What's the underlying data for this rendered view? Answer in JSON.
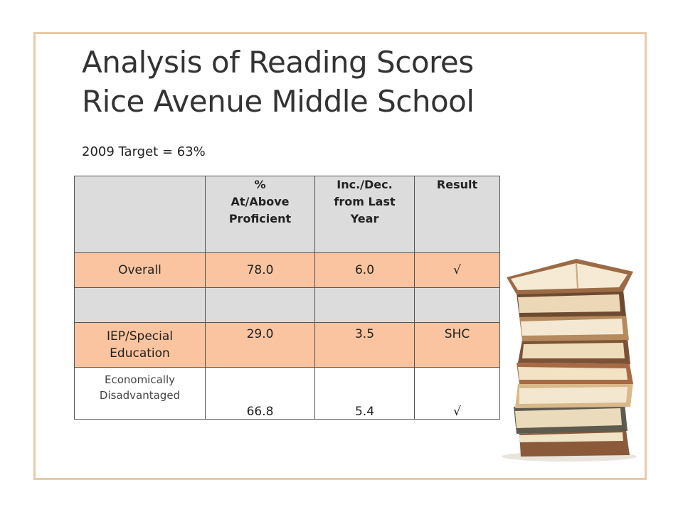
{
  "slide": {
    "title_line1": "Analysis of Reading Scores",
    "title_line2": "Rice Avenue Middle School",
    "subtitle": "2009 Target = 63%"
  },
  "table": {
    "headers": [
      "",
      "% At/Above Proficient",
      "Inc./Dec. from Last Year",
      "Result"
    ],
    "header_lines": {
      "col1": [
        "%",
        "At/Above",
        "Proficient"
      ],
      "col2": [
        "Inc./Dec.",
        "from Last",
        "Year"
      ],
      "col3": [
        "Result"
      ]
    },
    "rows": [
      {
        "label": [
          "Overall"
        ],
        "pct": "78.0",
        "change": "6.0",
        "result": "√"
      },
      {
        "label": [
          ""
        ],
        "pct": "",
        "change": "",
        "result": ""
      },
      {
        "label": [
          "IEP/Special",
          "Education"
        ],
        "pct": "29.0",
        "change": "3.5",
        "result": "SHC"
      },
      {
        "label": [
          "Economically",
          "Disadvantaged"
        ],
        "pct": "66.8",
        "change": "5.4",
        "result": "√"
      }
    ]
  },
  "colors": {
    "highlight_row": "#f9c49f",
    "header_bg": "#dcdcdc",
    "frame": "#e8cba6"
  },
  "decoration": {
    "image": "stack-of-books-icon"
  }
}
